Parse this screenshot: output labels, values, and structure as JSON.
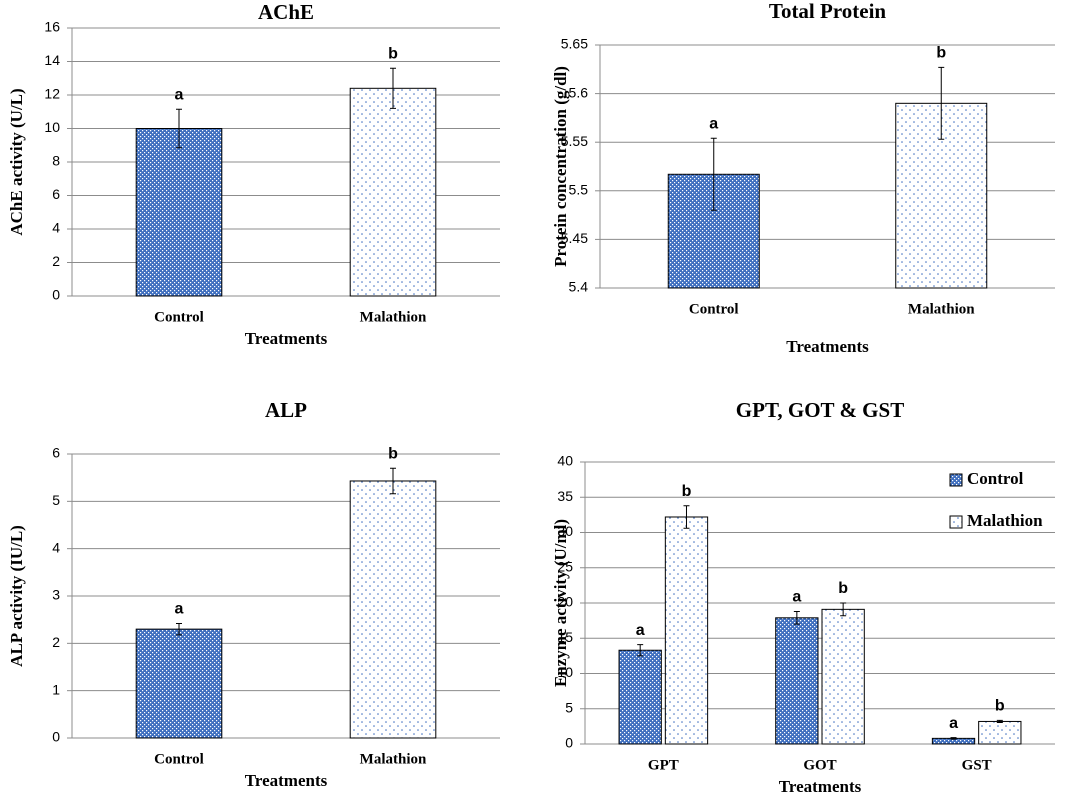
{
  "chart_data": [
    {
      "type": "bar",
      "title": "AChE",
      "xlabel": "Treatments",
      "ylabel": "AChE activity (U/L)",
      "categories": [
        "Control",
        "Malathion"
      ],
      "values": [
        10,
        12.4
      ],
      "errors": [
        1.15,
        1.2
      ],
      "letters": [
        "a",
        "b"
      ],
      "colors": [
        "#3f6fbf",
        "#3f6fbf"
      ],
      "patterns": [
        "crosshatch",
        "dots"
      ],
      "ylim": [
        0,
        16
      ],
      "yticks": [
        0,
        2,
        4,
        6,
        8,
        10,
        12,
        14,
        16
      ],
      "grid": true
    },
    {
      "type": "bar",
      "title": "Total Protein",
      "xlabel": "Treatments",
      "ylabel": "Protein concentration (g/dl)",
      "categories": [
        "Control",
        "Malathion"
      ],
      "values": [
        5.517,
        5.59
      ],
      "errors": [
        0.037,
        0.037
      ],
      "letters": [
        "a",
        "b"
      ],
      "colors": [
        "#3f6fbf",
        "#3f6fbf"
      ],
      "patterns": [
        "crosshatch",
        "dots"
      ],
      "ylim": [
        5.4,
        5.65
      ],
      "yticks": [
        5.4,
        5.45,
        5.5,
        5.55,
        5.6,
        5.65
      ],
      "grid": true
    },
    {
      "type": "bar",
      "title": "ALP",
      "xlabel": "Treatments",
      "ylabel": "ALP activity (IU/L)",
      "categories": [
        "Control",
        "Malathion"
      ],
      "values": [
        2.3,
        5.43
      ],
      "errors": [
        0.12,
        0.27
      ],
      "letters": [
        "a",
        "b"
      ],
      "colors": [
        "#3f6fbf",
        "#3f6fbf"
      ],
      "patterns": [
        "crosshatch",
        "dots"
      ],
      "ylim": [
        0,
        6
      ],
      "yticks": [
        0,
        1,
        2,
        3,
        4,
        5,
        6
      ],
      "grid": true
    },
    {
      "type": "grouped-bar",
      "title": "GPT, GOT & GST",
      "xlabel": "Treatments",
      "ylabel": "Enzyme activity (U/ml)",
      "categories": [
        "GPT",
        "GOT",
        "GST"
      ],
      "series": [
        {
          "name": "Control",
          "color": "#3f6fbf",
          "pattern": "crosshatch",
          "values": [
            13.3,
            17.9,
            0.8
          ],
          "errors": [
            0.8,
            0.9,
            0.1
          ],
          "letters": [
            "a",
            "a",
            "a"
          ]
        },
        {
          "name": "Malathion",
          "color": "#3f6fbf",
          "pattern": "dots",
          "values": [
            32.2,
            19.1,
            3.2
          ],
          "errors": [
            1.6,
            0.9,
            0.15
          ],
          "letters": [
            "b",
            "b",
            "b"
          ]
        }
      ],
      "ylim": [
        0,
        40
      ],
      "yticks": [
        0,
        5,
        10,
        15,
        20,
        25,
        30,
        35,
        40
      ],
      "grid": true,
      "legend": "upper right"
    }
  ]
}
